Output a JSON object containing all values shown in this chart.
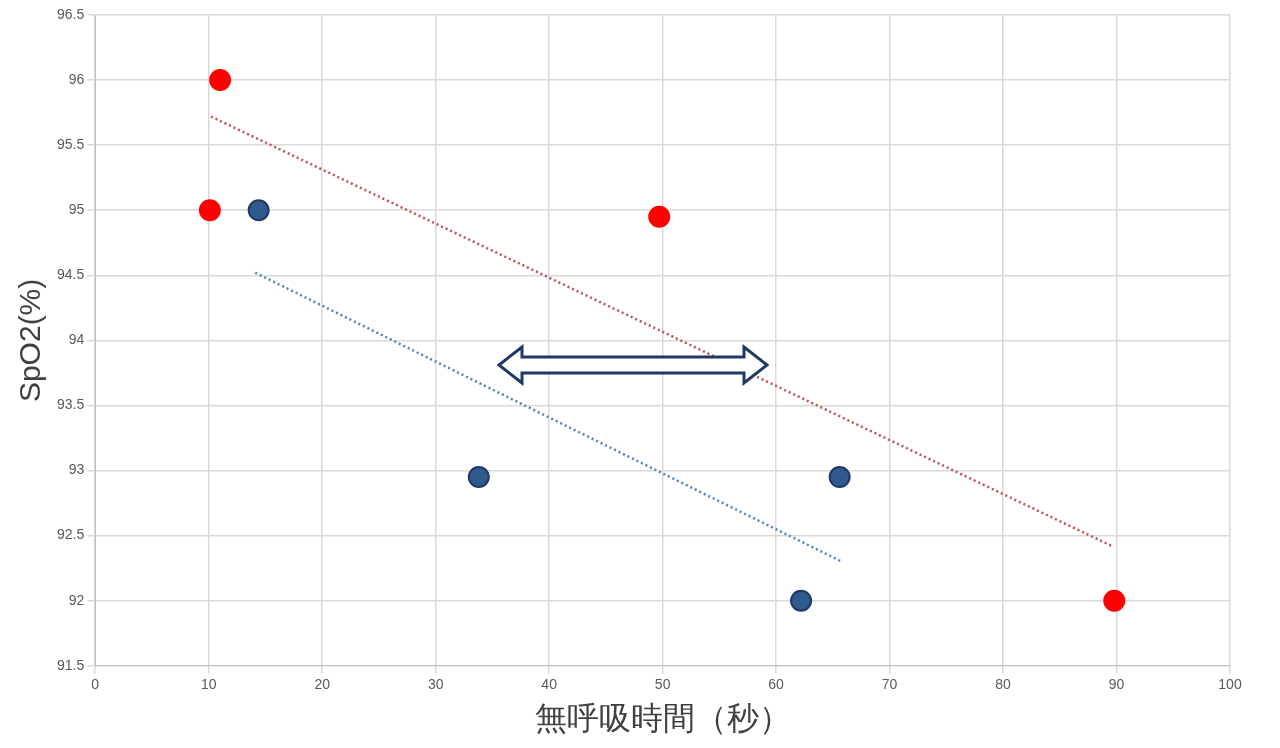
{
  "chart_data": {
    "type": "scatter",
    "xlabel": "無呼吸時間（秒）",
    "ylabel": "SpO2(%)",
    "xlim": [
      0,
      100
    ],
    "xticks": [
      0,
      10,
      20,
      30,
      40,
      50,
      60,
      70,
      80,
      90,
      100
    ],
    "ylim": [
      91.5,
      96.5
    ],
    "yticks": [
      91.5,
      92,
      92.5,
      93,
      93.5,
      94,
      94.5,
      95,
      95.5,
      96,
      96.5
    ],
    "grid": true,
    "series": [
      {
        "color": "#ff0000",
        "marker": "circle",
        "x": [
          11,
          10.1,
          49.7,
          89.8
        ],
        "values": [
          96,
          95,
          94.95,
          92
        ]
      },
      {
        "color": "#2e5a8e",
        "marker": "circle",
        "x": [
          14.4,
          33.8,
          62.2,
          65.6
        ],
        "values": [
          95,
          92.95,
          92,
          92.95
        ]
      },
      {
        "type": "line",
        "color": "#c0504d",
        "marker": "none",
        "line_style": "dotted",
        "x": [
          10.2,
          89.6
        ],
        "values": [
          95.72,
          92.42
        ]
      },
      {
        "type": "line",
        "color": "#4f81bd",
        "marker": "none",
        "line_style": "dotted",
        "x": [
          14.1,
          65.8
        ],
        "values": [
          94.52,
          92.3
        ]
      }
    ]
  }
}
